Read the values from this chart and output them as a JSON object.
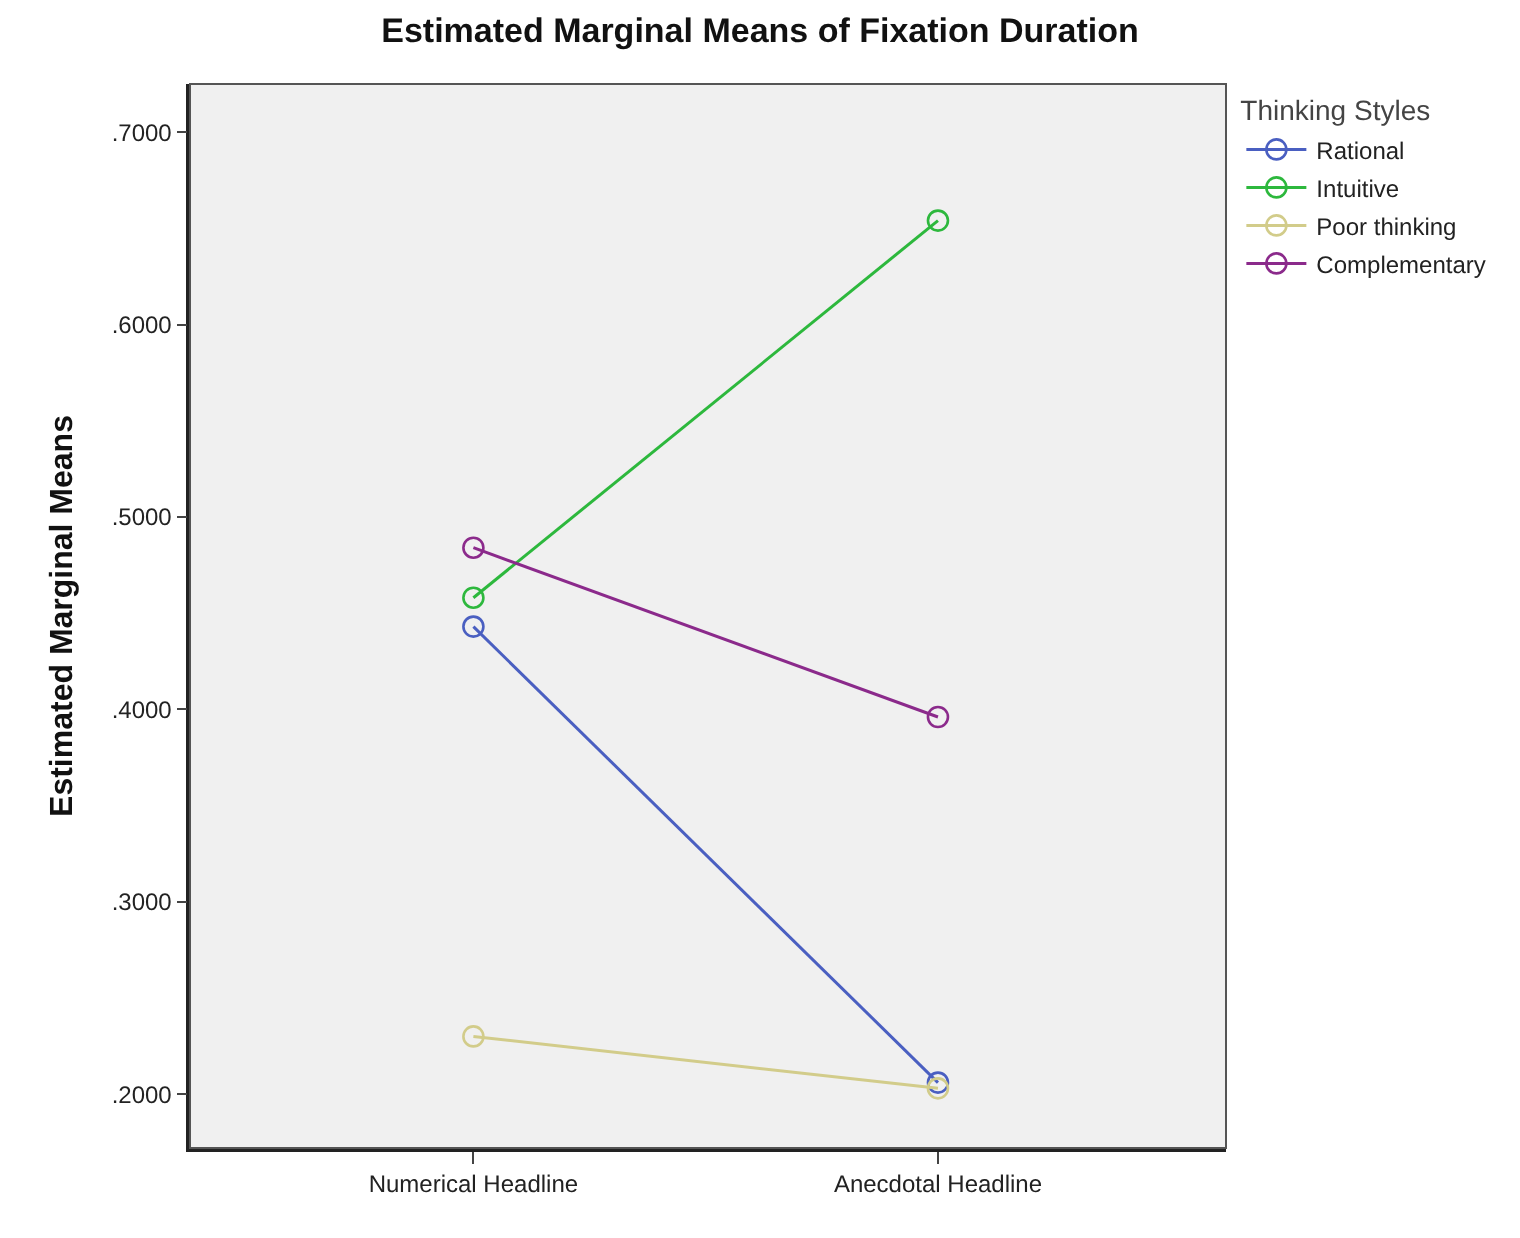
{
  "chart_data": {
    "type": "line",
    "title": "Estimated Marginal Means of Fixation Duration",
    "ylabel": "Estimated Marginal Means",
    "legend_title": "Thinking Styles",
    "categories": [
      "Numerical Headline",
      "Anecdotal Headline"
    ],
    "series": [
      {
        "name": "Rational",
        "color": "#4a5fc1",
        "values": [
          0.443,
          0.206
        ]
      },
      {
        "name": "Intuitive",
        "color": "#2db83d",
        "values": [
          0.458,
          0.654
        ]
      },
      {
        "name": "Poor thinking",
        "color": "#d2cc8a",
        "values": [
          0.23,
          0.203
        ]
      },
      {
        "name": "Complementary",
        "color": "#8b2a8b",
        "values": [
          0.484,
          0.396
        ]
      }
    ],
    "ylim": [
      0.172,
      0.725
    ],
    "yticks": [
      {
        "value": 0.2,
        "label": ".2000"
      },
      {
        "value": 0.3,
        "label": ".3000"
      },
      {
        "value": 0.4,
        "label": ".4000"
      },
      {
        "value": 0.5,
        "label": ".5000"
      },
      {
        "value": 0.6,
        "label": ".6000"
      },
      {
        "value": 0.7,
        "label": ".7000"
      }
    ],
    "grid": false,
    "legend": "top right",
    "marker": "circle",
    "line_style": "solid"
  }
}
